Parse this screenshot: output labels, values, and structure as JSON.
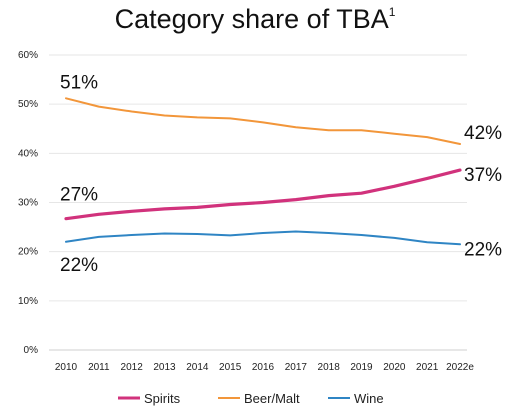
{
  "chart_data": {
    "type": "line",
    "title": "Category share of TBA",
    "title_superscript": "1",
    "x": [
      "2010",
      "2011",
      "2012",
      "2013",
      "2014",
      "2015",
      "2016",
      "2017",
      "2018",
      "2019",
      "2020",
      "2021",
      "2022e"
    ],
    "ylim": [
      0,
      60
    ],
    "yticks": [
      0,
      10,
      20,
      30,
      40,
      50,
      60
    ],
    "ytick_labels": [
      "0%",
      "10%",
      "20%",
      "30%",
      "40%",
      "50%",
      "60%"
    ],
    "grid": true,
    "legend_position": "bottom",
    "series": [
      {
        "name": "Spirits",
        "color": "#d1327c",
        "values": [
          26.7,
          27.6,
          28.2,
          28.7,
          29.0,
          29.6,
          30.0,
          30.6,
          31.4,
          31.9,
          33.3,
          34.9,
          36.6
        ],
        "start_label": "27%",
        "end_label": "37%"
      },
      {
        "name": "Beer/Malt",
        "color": "#f2963a",
        "values": [
          51.2,
          49.5,
          48.5,
          47.7,
          47.3,
          47.1,
          46.3,
          45.3,
          44.7,
          44.7,
          44.0,
          43.3,
          41.9
        ],
        "start_label": "51%",
        "end_label": "42%"
      },
      {
        "name": "Wine",
        "color": "#2f85c4",
        "values": [
          22.0,
          23.0,
          23.4,
          23.7,
          23.6,
          23.3,
          23.8,
          24.1,
          23.8,
          23.4,
          22.8,
          21.9,
          21.5
        ],
        "start_label": "22%",
        "end_label": "22%"
      }
    ]
  }
}
